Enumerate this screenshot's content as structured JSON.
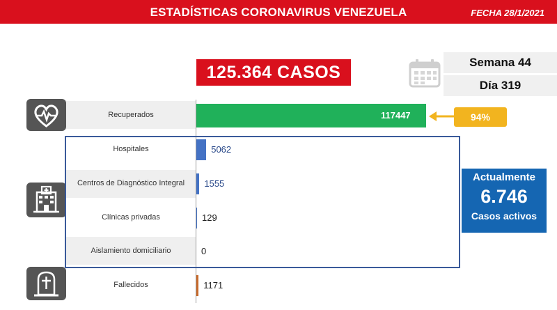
{
  "header": {
    "title": "ESTADÍSTICAS CORONAVIRUS VENEZUELA",
    "date": "FECHA 28/1/2021"
  },
  "total": {
    "label": "125.364 CASOS"
  },
  "calendar": {
    "icon": "calendar-icon",
    "week": "Semana 44",
    "day": "Día 319"
  },
  "recovered_percent": "94%",
  "active": {
    "title": "Actualmente",
    "value": "6.746",
    "subtitle": "Casos activos"
  },
  "icons": {
    "recovered": "heart-pulse-icon",
    "hospital": "hospital-icon",
    "deceased": "tombstone-icon"
  },
  "colors": {
    "header": "#d9101d",
    "recuperados": "#20b15a",
    "hospitalized": "#4472c4",
    "fallecidos": "#c86a2b",
    "percent": "#f2b41f",
    "active": "#1566b2",
    "box_border": "#3a5a9a"
  },
  "chart_data": {
    "type": "bar",
    "orientation": "horizontal",
    "categories": [
      "Recuperados",
      "Hospitales",
      "Centros de Diagnóstico Integral",
      "Clínicas privadas",
      "Aislamiento domiciliario",
      "Fallecidos"
    ],
    "values": [
      117447,
      5062,
      1555,
      129,
      0,
      1171
    ],
    "value_labels": [
      "117447",
      "5062",
      "1555",
      "129",
      "0",
      "1171"
    ],
    "bar_colors": [
      "#20b15a",
      "#4472c4",
      "#4472c4",
      "#4472c4",
      "#4472c4",
      "#c86a2b"
    ],
    "xlim": [
      0,
      117447
    ],
    "grid": false,
    "legend": "none"
  }
}
